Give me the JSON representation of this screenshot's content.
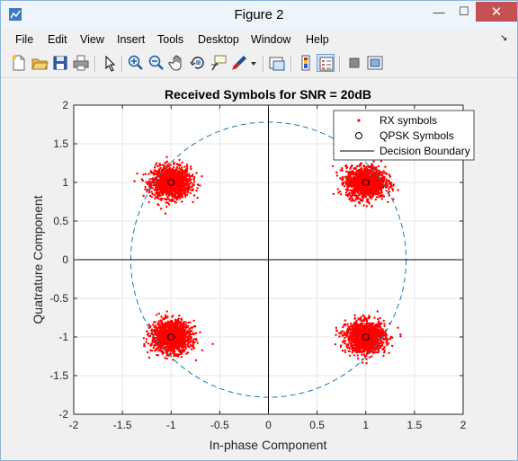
{
  "window": {
    "title": "Figure 2",
    "min_glyph": "—",
    "max_glyph": "☐",
    "close_glyph": "✕"
  },
  "menu": [
    "File",
    "Edit",
    "View",
    "Insert",
    "Tools",
    "Desktop",
    "Window",
    "Help"
  ],
  "dock_glyph": "↘",
  "toolbar_icons": [
    "new-figure-icon",
    "open-file-icon",
    "save-icon",
    "print-icon",
    "select-arrow-icon",
    "zoom-in-icon",
    "zoom-out-icon",
    "pan-icon",
    "rotate-3d-icon",
    "data-cursor-icon",
    "brush-icon",
    "brush-dropdown-icon",
    "link-plot-icon",
    "insert-colorbar-icon",
    "insert-legend-icon",
    "hide-plot-tools-icon",
    "show-plot-tools-icon"
  ],
  "chart_data": {
    "type": "scatter",
    "title": "Received Symbols for SNR = 20dB",
    "xlabel": "In-phase Component",
    "ylabel": "Quatrature Component",
    "xlim": [
      -2,
      2
    ],
    "ylim": [
      -2,
      2
    ],
    "xticks": [
      "-2",
      "-1.5",
      "-1",
      "-0.5",
      "0",
      "0.5",
      "1",
      "1.5",
      "2"
    ],
    "yticks": [
      "-2",
      "-1.5",
      "-1",
      "-0.5",
      "0",
      "0.5",
      "1",
      "1.5",
      "2"
    ],
    "xtick_values": [
      -2,
      -1.5,
      -1,
      -0.5,
      0,
      0.5,
      1,
      1.5,
      2
    ],
    "ytick_values": [
      -2,
      -1.5,
      -1,
      -0.5,
      0,
      0.5,
      1,
      1.5,
      2
    ],
    "grid": true,
    "legend_position": "top-right",
    "series": [
      {
        "name": "RX symbols",
        "kind": "scatter-cloud",
        "color": "#ff0000",
        "cluster_centers": [
          [
            -1,
            1
          ],
          [
            1,
            1
          ],
          [
            -1,
            -1
          ],
          [
            1,
            -1
          ]
        ],
        "spread_std": 0.1
      },
      {
        "name": "QPSK Symbols",
        "kind": "open-circle-marker",
        "color": "#000000",
        "points": [
          [
            -1,
            1
          ],
          [
            1,
            1
          ],
          [
            -1,
            -1
          ],
          [
            1,
            -1
          ]
        ]
      },
      {
        "name": "Decision Boundary",
        "kind": "lines",
        "color": "#000000",
        "lines": [
          [
            [
              -2,
              0
            ],
            [
              2,
              0
            ]
          ],
          [
            [
              0,
              -2
            ],
            [
              0,
              2
            ]
          ]
        ]
      },
      {
        "name": "",
        "kind": "dashed-circle",
        "color": "#1a78b4",
        "center": [
          0,
          0
        ],
        "radius": 1.414
      }
    ]
  }
}
